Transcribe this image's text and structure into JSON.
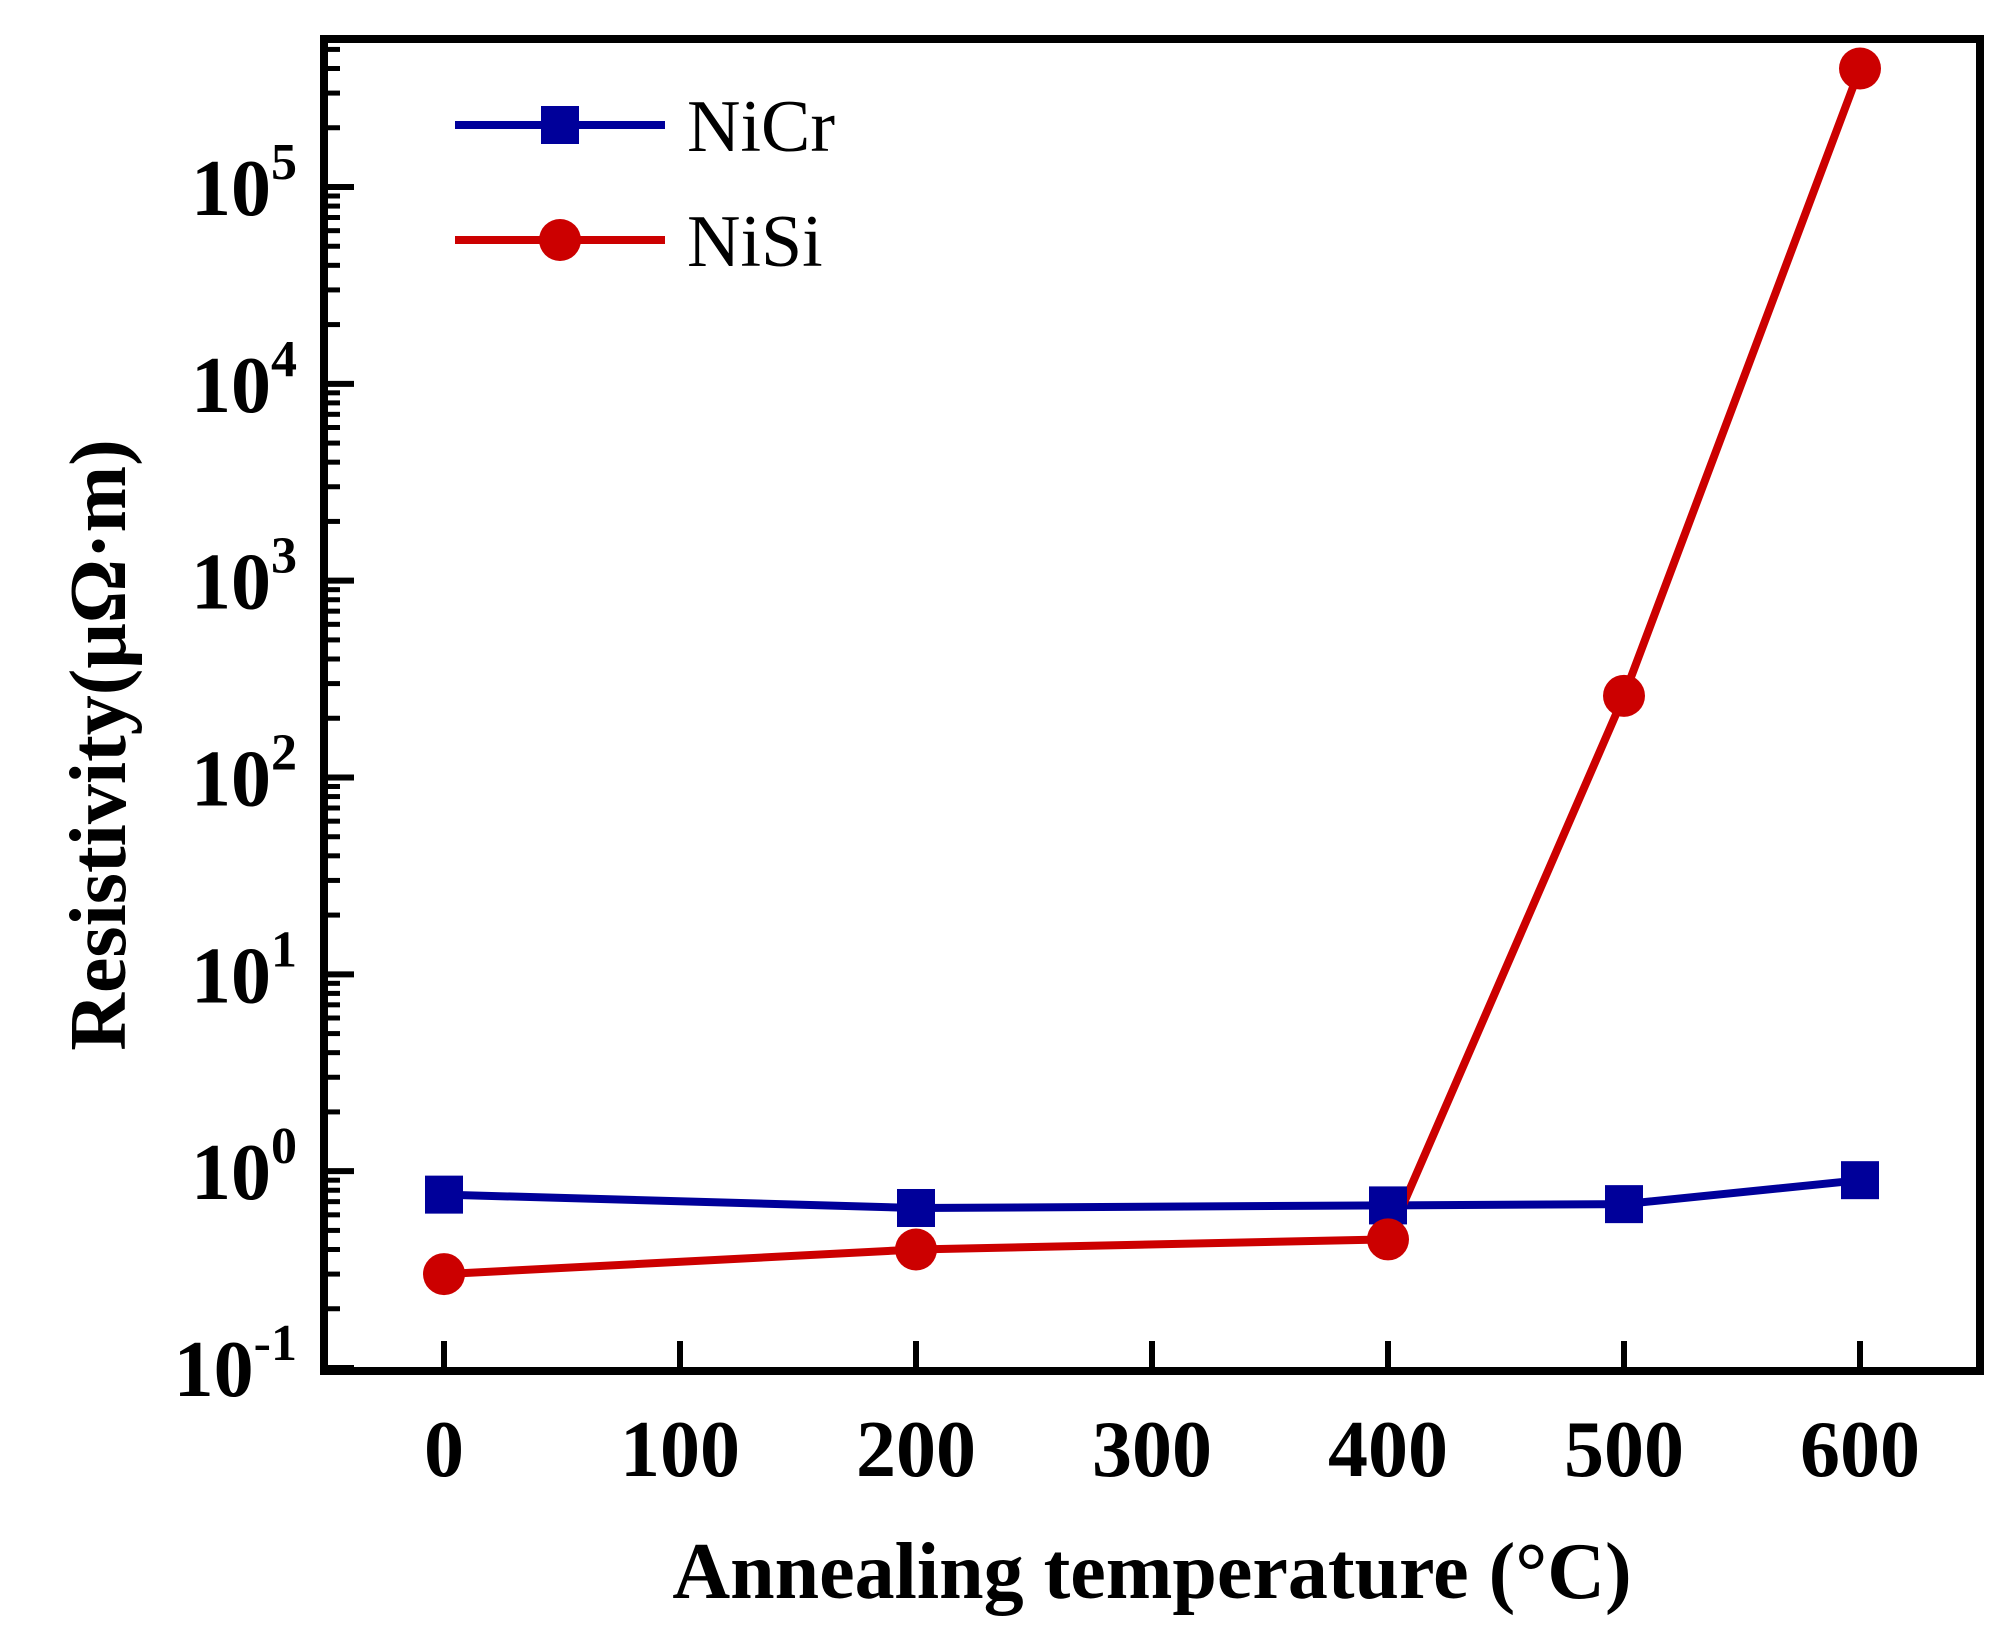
{
  "chart_data": {
    "type": "line",
    "title": "",
    "xlabel": "Annealing temperature (°C)",
    "ylabel": "Resistivity(μΩ·m)",
    "y_scale": "log",
    "ylim": [
      0.1,
      700000
    ],
    "xlim": [
      -50,
      650
    ],
    "x_ticks": [
      0,
      100,
      200,
      300,
      400,
      500,
      600
    ],
    "x_tick_labels": [
      "0",
      "100",
      "200",
      "300",
      "400",
      "500",
      "600"
    ],
    "y_ticks": [
      {
        "value": 0.1,
        "base": "10",
        "exp": "-1"
      },
      {
        "value": 1,
        "base": "10",
        "exp": "0"
      },
      {
        "value": 10,
        "base": "10",
        "exp": "1"
      },
      {
        "value": 100,
        "base": "10",
        "exp": "2"
      },
      {
        "value": 1000,
        "base": "10",
        "exp": "3"
      },
      {
        "value": 10000,
        "base": "10",
        "exp": "4"
      },
      {
        "value": 100000,
        "base": "10",
        "exp": "5"
      }
    ],
    "grid": false,
    "legend_position": "top-left",
    "series": [
      {
        "name": "NiCr",
        "color": "#00009a",
        "marker": "square",
        "x": [
          0,
          200,
          400,
          500,
          600
        ],
        "y": [
          0.76,
          0.65,
          0.67,
          0.68,
          0.9
        ]
      },
      {
        "name": "NiSi",
        "color": "#cc0000",
        "marker": "circle",
        "x": [
          0,
          200,
          400,
          500,
          600
        ],
        "y": [
          0.3,
          0.4,
          0.45,
          260,
          400000
        ]
      }
    ]
  }
}
